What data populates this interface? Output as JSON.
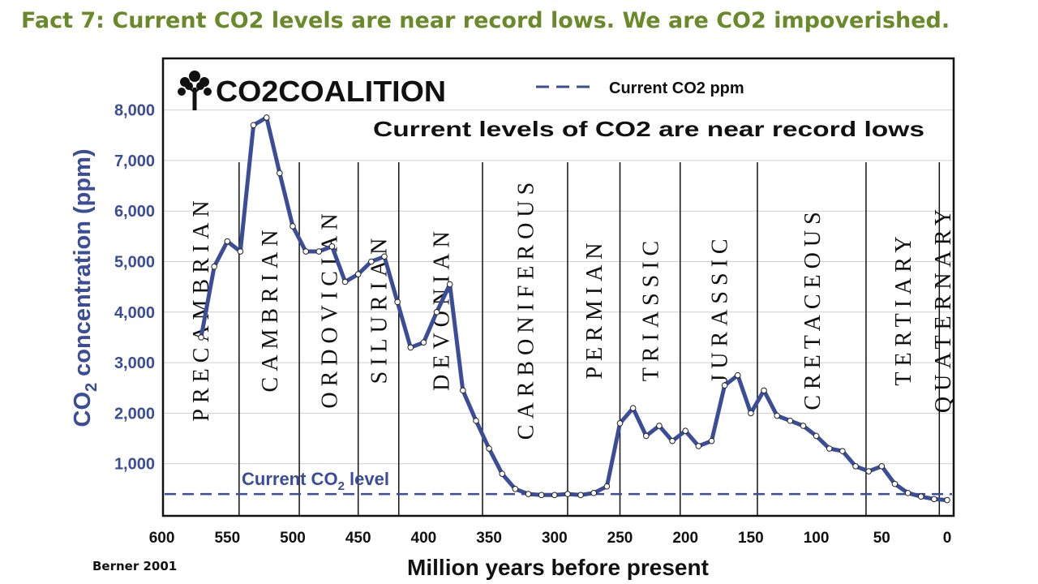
{
  "slide": {
    "title": "Fact 7: Current CO2 levels are near record lows. We are CO2 impoverished.",
    "citation": "Berner 2001"
  },
  "logo": {
    "text": "CO2COALITION",
    "icon": "tree-icon"
  },
  "colors": {
    "title": "#6a8a2a",
    "series": "#3a4d96",
    "frame": "#111111"
  },
  "chart_data": {
    "type": "line",
    "title": "Current levels of CO2 are near record lows",
    "xlabel": "Million years before present",
    "ylabel": "CO2 concentration (ppm)",
    "ylabel_parts": {
      "pre": "CO",
      "sub": "2",
      "post": " concentration (ppm)"
    },
    "xlim": [
      600,
      0
    ],
    "ylim": [
      0,
      8000
    ],
    "x_ticks": [
      "600",
      "550",
      "500",
      "450",
      "400",
      "350",
      "300",
      "250",
      "200",
      "150",
      "100",
      "50",
      "0"
    ],
    "x_tick_values": [
      600,
      550,
      500,
      450,
      400,
      350,
      300,
      250,
      200,
      150,
      100,
      50,
      0
    ],
    "y_ticks": [
      "1,000",
      "2,000",
      "3,000",
      "4,000",
      "5,000",
      "6,000",
      "7,000",
      "8,000"
    ],
    "y_tick_values": [
      1000,
      2000,
      3000,
      4000,
      5000,
      6000,
      7000,
      8000
    ],
    "grid": "horizontal",
    "legend": {
      "label": "Current CO2 ppm",
      "placement": "top"
    },
    "reference_line": {
      "value": 400,
      "label_parts": {
        "pre": "Current CO",
        "sub": "2",
        "post": " level"
      }
    },
    "periods": [
      {
        "name": "PRECAMBRIAN",
        "start": 600,
        "end": 541
      },
      {
        "name": "CAMBRIAN",
        "start": 541,
        "end": 495
      },
      {
        "name": "ORDOVICIAN",
        "start": 495,
        "end": 450
      },
      {
        "name": "SILURIAN",
        "start": 450,
        "end": 419
      },
      {
        "name": "DEVONIAN",
        "start": 419,
        "end": 355
      },
      {
        "name": "CARBONIFEROUS",
        "start": 355,
        "end": 290
      },
      {
        "name": "PERMIAN",
        "start": 290,
        "end": 250
      },
      {
        "name": "TRIASSIC",
        "start": 250,
        "end": 204
      },
      {
        "name": "JURASSIC",
        "start": 204,
        "end": 145
      },
      {
        "name": "CRETACEOUS",
        "start": 145,
        "end": 62
      },
      {
        "name": "TERTIARY",
        "start": 62,
        "end": 6
      },
      {
        "name": "QUATERNARY",
        "start": 6,
        "end": 0
      }
    ],
    "series": [
      {
        "x": [
          570,
          560,
          550,
          540,
          530,
          520,
          510,
          500,
          490,
          480,
          470,
          460,
          450,
          440,
          430,
          420,
          410,
          400,
          390,
          380,
          370,
          360,
          350,
          340,
          330,
          320,
          310,
          300,
          290,
          280,
          270,
          260,
          250,
          240,
          230,
          220,
          210,
          200,
          190,
          180,
          170,
          160,
          150,
          140,
          130,
          120,
          110,
          100,
          90,
          80,
          70,
          60,
          50,
          40,
          30,
          20,
          10,
          0
        ],
        "values": [
          3500,
          4900,
          5400,
          5200,
          7700,
          7850,
          6750,
          5700,
          5200,
          5200,
          5300,
          4600,
          4750,
          5000,
          5100,
          4200,
          3300,
          3400,
          4000,
          4550,
          2450,
          1850,
          1300,
          800,
          500,
          400,
          380,
          380,
          400,
          380,
          420,
          550,
          1800,
          2100,
          1550,
          1750,
          1450,
          1650,
          1350,
          1450,
          2550,
          2750,
          2000,
          2450,
          1950,
          1850,
          1750,
          1550,
          1300,
          1250,
          950,
          850,
          950,
          600,
          420,
          350,
          300,
          280
        ]
      }
    ]
  }
}
